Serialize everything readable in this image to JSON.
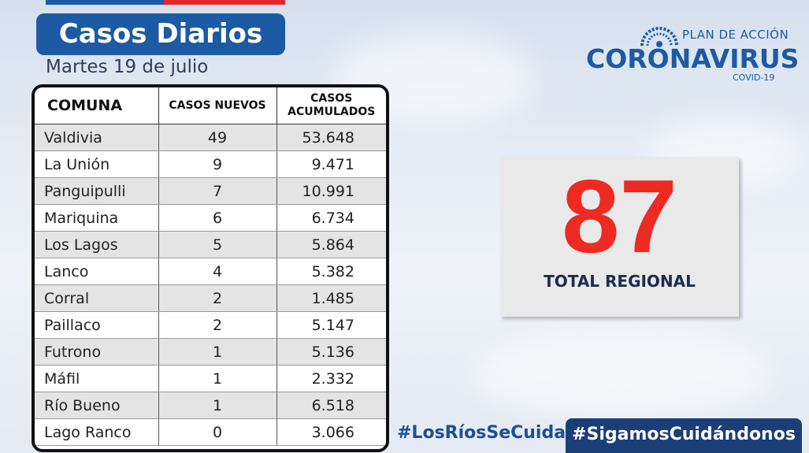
{
  "header": {
    "title": "Casos Diarios",
    "date": "Martes 19 de julio"
  },
  "logo": {
    "plan": "PLAN DE ACCIÓN",
    "name": "CORONAVIRUS",
    "sub": "COVID-19"
  },
  "table": {
    "headers": {
      "comuna": "COMUNA",
      "nuevos": "CASOS NUEVOS",
      "acumulados_1": "CASOS",
      "acumulados_2": "ACUMULADOS"
    },
    "rows": [
      {
        "comuna": "Valdivia",
        "nuevos": "49",
        "acumulados": "53.648"
      },
      {
        "comuna": "La Unión",
        "nuevos": "9",
        "acumulados": "9.471"
      },
      {
        "comuna": "Panguipulli",
        "nuevos": "7",
        "acumulados": "10.991"
      },
      {
        "comuna": "Mariquina",
        "nuevos": "6",
        "acumulados": "6.734"
      },
      {
        "comuna": "Los Lagos",
        "nuevos": "5",
        "acumulados": "5.864"
      },
      {
        "comuna": "Lanco",
        "nuevos": "4",
        "acumulados": "5.382"
      },
      {
        "comuna": "Corral",
        "nuevos": "2",
        "acumulados": "1.485"
      },
      {
        "comuna": "Paillaco",
        "nuevos": "2",
        "acumulados": "5.147"
      },
      {
        "comuna": "Futrono",
        "nuevos": "1",
        "acumulados": "5.136"
      },
      {
        "comuna": "Máfil",
        "nuevos": "1",
        "acumulados": "2.332"
      },
      {
        "comuna": "Río Bueno",
        "nuevos": "1",
        "acumulados": "6.518"
      },
      {
        "comuna": "Lago Ranco",
        "nuevos": "0",
        "acumulados": "3.066"
      }
    ]
  },
  "total": {
    "value": "87",
    "label": "TOTAL REGIONAL"
  },
  "footer": {
    "hashtag_1": "#LosRíosSeCuida",
    "hashtag_2": "#SigamosCuidándonos"
  },
  "colors": {
    "brand_blue": "#1c5aa3",
    "total_red": "#ee2a22",
    "footer_navy": "#1c3e77"
  }
}
